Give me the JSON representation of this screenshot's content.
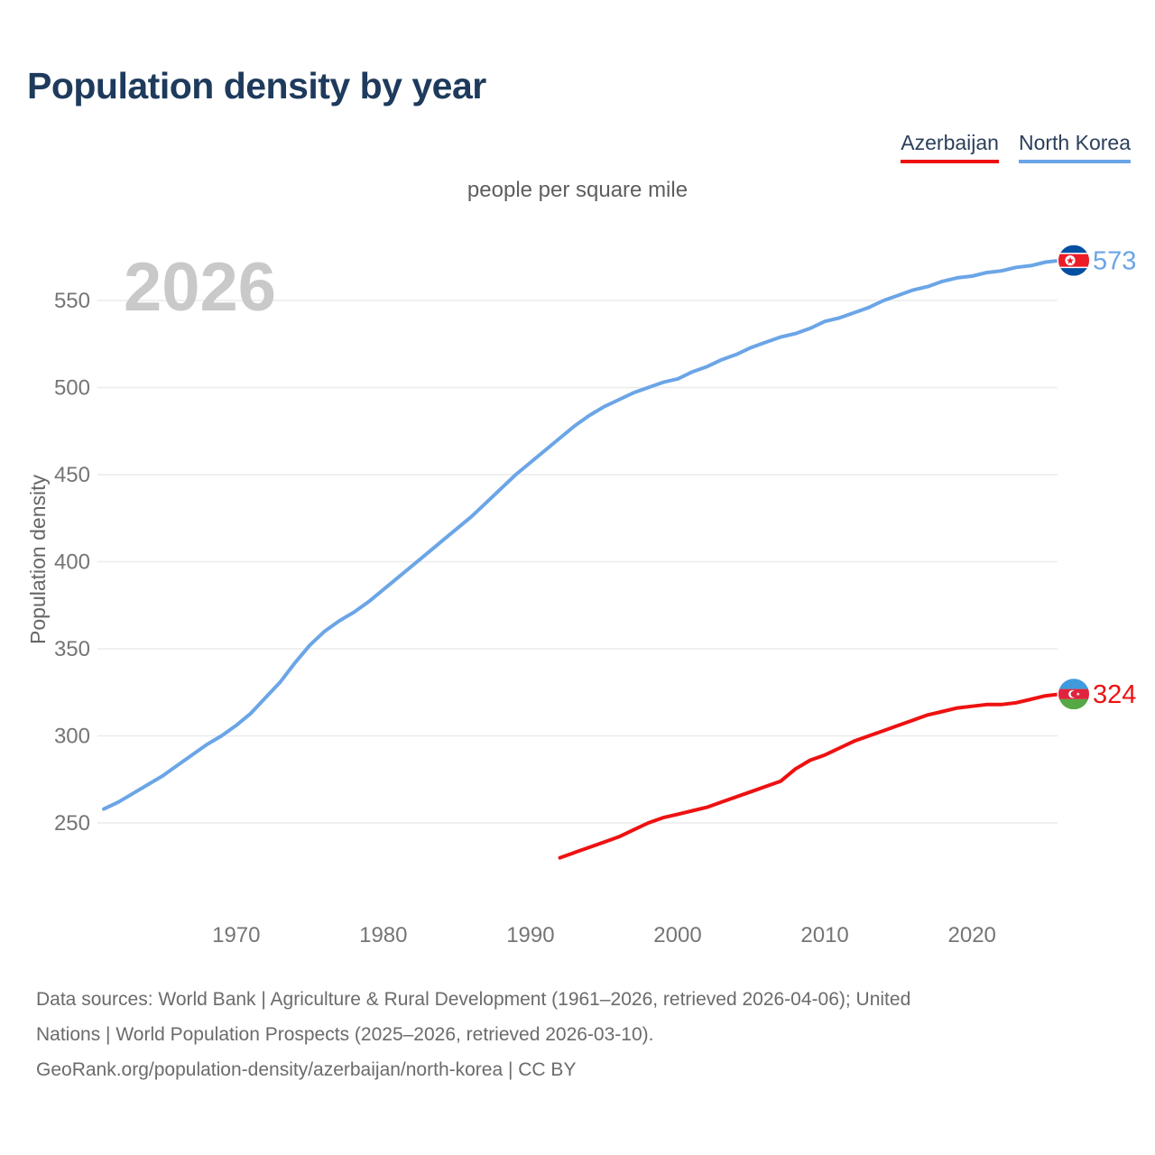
{
  "page": {
    "title": "Population density by year",
    "subtitle": "people per square mile",
    "watermark": "2026"
  },
  "legend": [
    {
      "label": "Azerbaijan",
      "color": "#ee1111"
    },
    {
      "label": "North Korea",
      "color": "#6ba5e7"
    }
  ],
  "footer": {
    "line1": "Data sources: World Bank | Agriculture & Rural Development (1961–2026, retrieved 2026-04-06); United",
    "line2": "Nations | World Population Prospects (2025–2026, retrieved 2026-03-10).",
    "line3": "GeoRank.org/population-density/azerbaijan/north-korea | CC BY"
  },
  "chart_data": {
    "type": "line",
    "title": "Population density by year",
    "subtitle": "people per square mile",
    "ylabel": "Population density",
    "xlim": [
      1961,
      2026
    ],
    "ylim": [
      200,
      580
    ],
    "yticks": [
      250,
      300,
      350,
      400,
      450,
      500,
      550
    ],
    "xticks": [
      1970,
      1980,
      1990,
      2000,
      2010,
      2020
    ],
    "grid": "horizontal",
    "legend_position": "top-right",
    "series": [
      {
        "name": "North Korea",
        "color": "#6ba5e7",
        "end_label": "573",
        "flag": "north-korea",
        "years": [
          1961,
          1962,
          1963,
          1964,
          1965,
          1966,
          1967,
          1968,
          1969,
          1970,
          1971,
          1972,
          1973,
          1974,
          1975,
          1976,
          1977,
          1978,
          1979,
          1980,
          1981,
          1982,
          1983,
          1984,
          1985,
          1986,
          1987,
          1988,
          1989,
          1990,
          1991,
          1992,
          1993,
          1994,
          1995,
          1996,
          1997,
          1998,
          1999,
          2000,
          2001,
          2002,
          2003,
          2004,
          2005,
          2006,
          2007,
          2008,
          2009,
          2010,
          2011,
          2012,
          2013,
          2014,
          2015,
          2016,
          2017,
          2018,
          2019,
          2020,
          2021,
          2022,
          2023,
          2024,
          2025,
          2026
        ],
        "values": [
          258,
          262,
          267,
          272,
          277,
          283,
          289,
          295,
          300,
          306,
          313,
          322,
          331,
          342,
          352,
          360,
          366,
          371,
          377,
          384,
          391,
          398,
          405,
          412,
          419,
          426,
          434,
          442,
          450,
          457,
          464,
          471,
          478,
          484,
          489,
          493,
          497,
          500,
          503,
          505,
          509,
          512,
          516,
          519,
          523,
          526,
          529,
          531,
          534,
          538,
          540,
          543,
          546,
          550,
          553,
          556,
          558,
          561,
          563,
          564,
          566,
          567,
          569,
          570,
          572,
          573
        ]
      },
      {
        "name": "Azerbaijan",
        "color": "#ee1111",
        "end_label": "324",
        "flag": "azerbaijan",
        "years": [
          1992,
          1993,
          1994,
          1995,
          1996,
          1997,
          1998,
          1999,
          2000,
          2001,
          2002,
          2003,
          2004,
          2005,
          2006,
          2007,
          2008,
          2009,
          2010,
          2011,
          2012,
          2013,
          2014,
          2015,
          2016,
          2017,
          2018,
          2019,
          2020,
          2021,
          2022,
          2023,
          2024,
          2025,
          2026
        ],
        "values": [
          230,
          233,
          236,
          239,
          242,
          246,
          250,
          253,
          255,
          257,
          259,
          262,
          265,
          268,
          271,
          274,
          281,
          286,
          289,
          293,
          297,
          300,
          303,
          306,
          309,
          312,
          314,
          316,
          317,
          318,
          318,
          319,
          321,
          323,
          324
        ]
      }
    ]
  }
}
